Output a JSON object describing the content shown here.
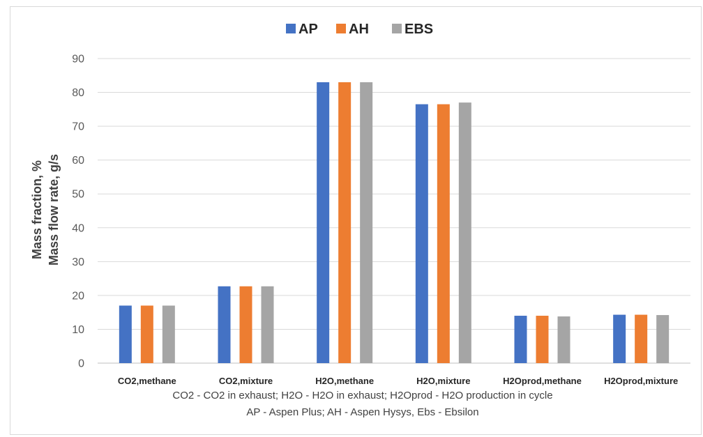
{
  "chart_data": {
    "type": "bar",
    "categories": [
      "CO2,methane",
      "CO2,mixture",
      "H2O,methane",
      "H2O,mixture",
      "H2Oprod,methane",
      "H2Oprod,mixture"
    ],
    "series": [
      {
        "name": "AP",
        "color": "#4472c4",
        "values": [
          17.0,
          22.7,
          83.0,
          76.5,
          14.0,
          14.3
        ]
      },
      {
        "name": "AH",
        "color": "#ed7d31",
        "values": [
          17.0,
          22.7,
          83.0,
          76.5,
          14.0,
          14.3
        ]
      },
      {
        "name": "EBS",
        "color": "#a5a5a5",
        "values": [
          17.0,
          22.7,
          83.0,
          77.0,
          13.8,
          14.2
        ]
      }
    ],
    "ylabel_line1": "Mass fraction, %",
    "ylabel_line2": "Mass flow rate, g/s",
    "ylim": [
      0,
      90
    ],
    "yticks": [
      0,
      10,
      20,
      30,
      40,
      50,
      60,
      70,
      80,
      90
    ],
    "grid": true,
    "legend": "top-center",
    "notes": [
      "CO2 - CO2 in exhaust; H2O - H2O in exhaust; H2Oprod - H2O production in cycle",
      "AP - Aspen Plus; AH - Aspen Hysys, Ebs - Ebsilon"
    ]
  }
}
